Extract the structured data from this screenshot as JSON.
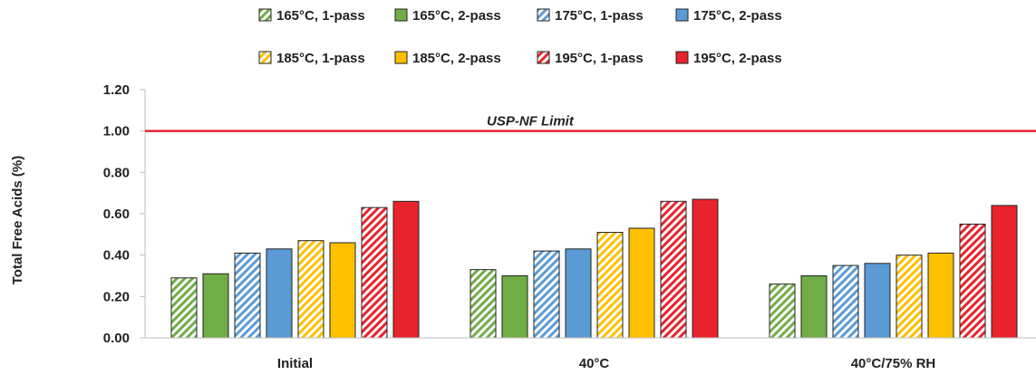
{
  "chart_data": {
    "type": "bar",
    "title": "",
    "xlabel": "",
    "ylabel": "Total Free Acids (%)",
    "ylim": [
      0,
      1.2
    ],
    "yticks": [
      "0.00",
      "0.20",
      "0.40",
      "0.60",
      "0.80",
      "1.00",
      "1.20"
    ],
    "categories": [
      "Initial",
      "40°C",
      "40°C/75% RH"
    ],
    "series": [
      {
        "name": "165°C, 1-pass",
        "color": "#70ad47",
        "hatched": true,
        "values": [
          0.29,
          0.33,
          0.26
        ]
      },
      {
        "name": "165°C, 2-pass",
        "color": "#70ad47",
        "hatched": false,
        "values": [
          0.31,
          0.3,
          0.3
        ]
      },
      {
        "name": "175°C, 1-pass",
        "color": "#5b9bd5",
        "hatched": true,
        "values": [
          0.41,
          0.42,
          0.35
        ]
      },
      {
        "name": "175°C, 2-pass",
        "color": "#5b9bd5",
        "hatched": false,
        "values": [
          0.43,
          0.43,
          0.36
        ]
      },
      {
        "name": "185°C, 1-pass",
        "color": "#ffc000",
        "hatched": true,
        "values": [
          0.47,
          0.51,
          0.4
        ]
      },
      {
        "name": "185°C, 2-pass",
        "color": "#ffc000",
        "hatched": false,
        "values": [
          0.46,
          0.53,
          0.41
        ]
      },
      {
        "name": "195°C, 1-pass",
        "color": "#e8232c",
        "hatched": true,
        "values": [
          0.63,
          0.66,
          0.55
        ]
      },
      {
        "name": "195°C, 2-pass",
        "color": "#e8232c",
        "hatched": false,
        "values": [
          0.66,
          0.67,
          0.64
        ]
      }
    ],
    "reference_line": {
      "label": "USP-NF Limit",
      "value": 1.0,
      "color": "#e8232c"
    },
    "grid": false,
    "legend_position": "top"
  }
}
